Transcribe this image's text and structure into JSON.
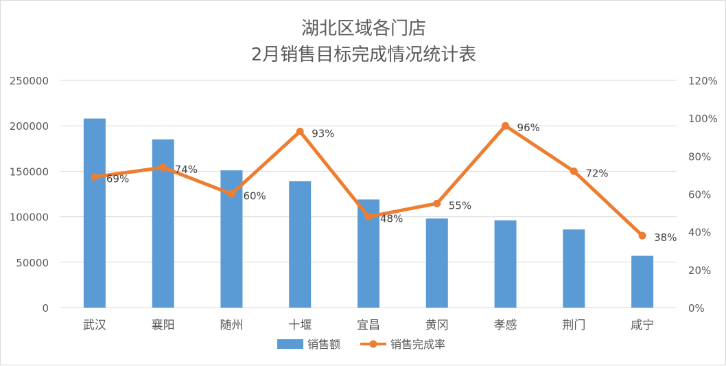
{
  "chart_data": {
    "type": "bar",
    "title_lines": [
      "湖北区域各门店",
      "2月销售目标完成情况统计表"
    ],
    "categories": [
      "武汉",
      "襄阳",
      "随州",
      "十堰",
      "宜昌",
      "黄冈",
      "孝感",
      "荆门",
      "咸宁"
    ],
    "series": [
      {
        "name": "销售额",
        "type": "bar",
        "axis": "left",
        "color": "#5b9bd5",
        "values": [
          208000,
          185000,
          151000,
          139000,
          119000,
          98000,
          96000,
          86000,
          57000
        ]
      },
      {
        "name": "销售完成率",
        "type": "line",
        "axis": "right",
        "color": "#ed7d31",
        "values": [
          0.69,
          0.74,
          0.6,
          0.93,
          0.48,
          0.55,
          0.96,
          0.72,
          0.38
        ],
        "labels": [
          "69%",
          "74%",
          "60%",
          "93%",
          "48%",
          "55%",
          "96%",
          "72%",
          "38%"
        ]
      }
    ],
    "y_left": {
      "ylim": [
        0,
        250000
      ],
      "ticks": [
        0,
        50000,
        100000,
        150000,
        200000,
        250000
      ],
      "tick_labels": [
        "0",
        "50000",
        "100000",
        "150000",
        "200000",
        "250000"
      ]
    },
    "y_right": {
      "ylim": [
        0,
        1.2
      ],
      "ticks": [
        0,
        0.2,
        0.4,
        0.6,
        0.8,
        1.0,
        1.2
      ],
      "tick_labels": [
        "0%",
        "20%",
        "40%",
        "60%",
        "80%",
        "100%",
        "120%"
      ]
    },
    "grid": true,
    "legend_position": "bottom"
  }
}
